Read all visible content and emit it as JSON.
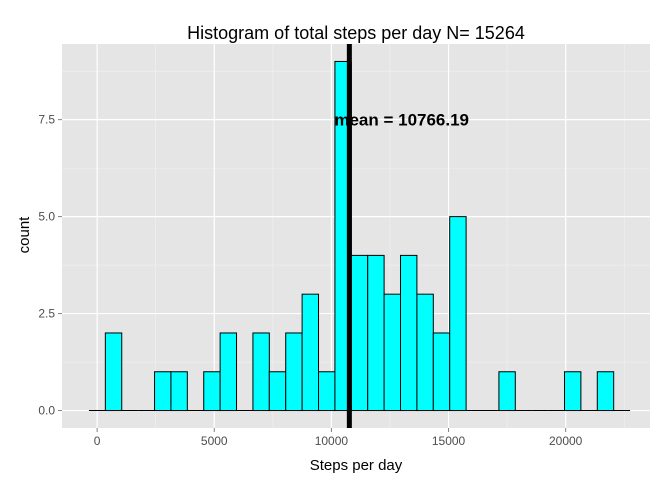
{
  "chart_data": {
    "type": "bar",
    "title": "Histogram of total steps per day N= 15264",
    "xlabel": "Steps per day",
    "ylabel": "count",
    "bin_width": 700,
    "bins": [
      {
        "x_start": -350,
        "x_end": 350,
        "count": 0
      },
      {
        "x_start": 350,
        "x_end": 1050,
        "count": 2
      },
      {
        "x_start": 1050,
        "x_end": 1750,
        "count": 0
      },
      {
        "x_start": 1750,
        "x_end": 2450,
        "count": 0
      },
      {
        "x_start": 2450,
        "x_end": 3150,
        "count": 1
      },
      {
        "x_start": 3150,
        "x_end": 3850,
        "count": 1
      },
      {
        "x_start": 3850,
        "x_end": 4550,
        "count": 0
      },
      {
        "x_start": 4550,
        "x_end": 5250,
        "count": 1
      },
      {
        "x_start": 5250,
        "x_end": 5950,
        "count": 2
      },
      {
        "x_start": 5950,
        "x_end": 6650,
        "count": 0
      },
      {
        "x_start": 6650,
        "x_end": 7350,
        "count": 2
      },
      {
        "x_start": 7350,
        "x_end": 8050,
        "count": 1
      },
      {
        "x_start": 8050,
        "x_end": 8750,
        "count": 2
      },
      {
        "x_start": 8750,
        "x_end": 9450,
        "count": 3
      },
      {
        "x_start": 9450,
        "x_end": 10150,
        "count": 1
      },
      {
        "x_start": 10150,
        "x_end": 10850,
        "count": 9
      },
      {
        "x_start": 10850,
        "x_end": 11550,
        "count": 4
      },
      {
        "x_start": 11550,
        "x_end": 12250,
        "count": 4
      },
      {
        "x_start": 12250,
        "x_end": 12950,
        "count": 3
      },
      {
        "x_start": 12950,
        "x_end": 13650,
        "count": 4
      },
      {
        "x_start": 13650,
        "x_end": 14350,
        "count": 3
      },
      {
        "x_start": 14350,
        "x_end": 15050,
        "count": 2
      },
      {
        "x_start": 15050,
        "x_end": 15750,
        "count": 5
      },
      {
        "x_start": 15750,
        "x_end": 16450,
        "count": 0
      },
      {
        "x_start": 16450,
        "x_end": 17150,
        "count": 0
      },
      {
        "x_start": 17150,
        "x_end": 17850,
        "count": 1
      },
      {
        "x_start": 17850,
        "x_end": 18550,
        "count": 0
      },
      {
        "x_start": 18550,
        "x_end": 19250,
        "count": 0
      },
      {
        "x_start": 19250,
        "x_end": 19950,
        "count": 0
      },
      {
        "x_start": 19950,
        "x_end": 20650,
        "count": 1
      },
      {
        "x_start": 20650,
        "x_end": 21350,
        "count": 0
      },
      {
        "x_start": 21350,
        "x_end": 22050,
        "count": 1
      },
      {
        "x_start": 22050,
        "x_end": 22750,
        "count": 0
      }
    ],
    "xlim": [
      -1500,
      23600
    ],
    "ylim": [
      -0.45,
      9.45
    ],
    "x_ticks": [
      0,
      5000,
      10000,
      15000,
      20000
    ],
    "x_tick_labels": [
      "0",
      "5000",
      "10000",
      "15000",
      "20000"
    ],
    "y_ticks": [
      0,
      2.5,
      5,
      7.5
    ],
    "y_tick_labels": [
      "0.0",
      "2.5",
      "5.0",
      "7.5"
    ],
    "grid": true,
    "legend": "none",
    "mean_line": {
      "x": 10766.19
    },
    "annotation": {
      "text": "mean =  10766.19",
      "x": 13000,
      "y": 7.5
    },
    "colors": {
      "panel_background": "#e5e5e5",
      "grid_major": "#ffffff",
      "grid_minor": "#f2f2f2",
      "bar_fill": "#00ffff",
      "bar_stroke": "#000000",
      "mean_line": "#000000",
      "tick_text": "#4d4d4d"
    }
  }
}
